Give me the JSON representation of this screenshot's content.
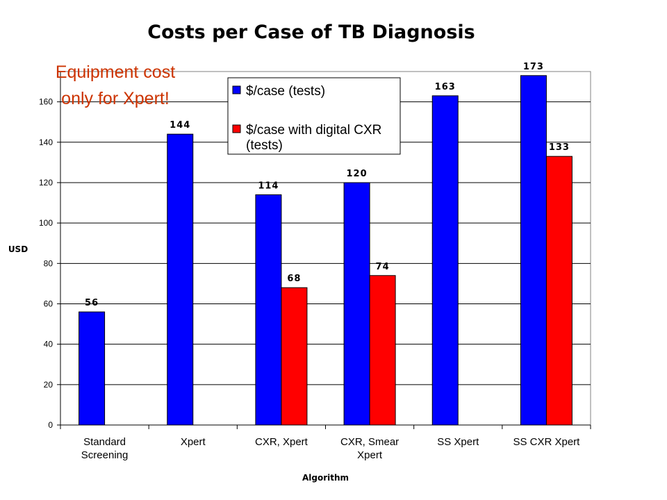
{
  "chart_data": {
    "type": "bar",
    "title": "Costs per Case of TB Diagnosis",
    "annotation": [
      "Equipment cost",
      "only for Xpert!"
    ],
    "xlabel": "Algorithm",
    "ylabel": "USD",
    "ylim": [
      0,
      175
    ],
    "yticks": [
      0,
      20,
      40,
      60,
      80,
      100,
      120,
      140,
      160
    ],
    "grid": true,
    "legend_position": "top",
    "categories": [
      [
        "Standard",
        "Screening"
      ],
      [
        "Xpert"
      ],
      [
        "CXR, Xpert"
      ],
      [
        "CXR, Smear",
        "Xpert"
      ],
      [
        "SS Xpert"
      ],
      [
        "SS CXR Xpert"
      ]
    ],
    "series": [
      {
        "name": "$/case (tests)",
        "legend_lines": [
          "$/case (tests)"
        ],
        "color": "#0000ff",
        "values": [
          56,
          144,
          114,
          120,
          163,
          173
        ]
      },
      {
        "name": "$/case with digital CXR (tests)",
        "legend_lines": [
          "$/case with digital CXR",
          "(tests)"
        ],
        "color": "#ff0000",
        "values": [
          null,
          null,
          68,
          74,
          null,
          133
        ]
      }
    ]
  }
}
